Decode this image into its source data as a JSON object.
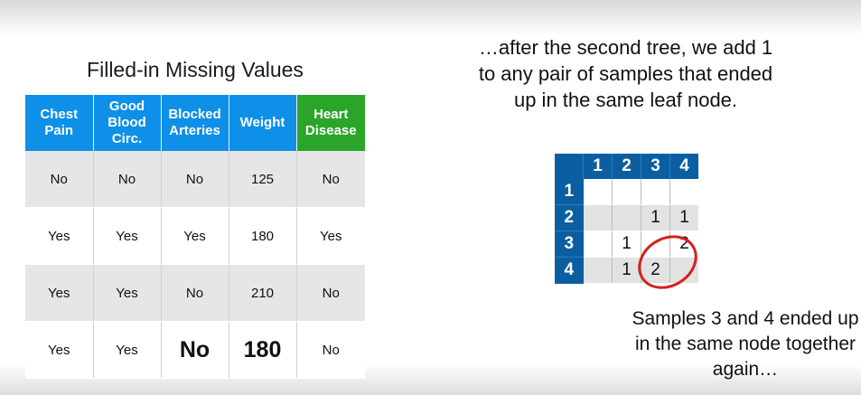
{
  "left_panel": {
    "title": "Filled-in Missing Values",
    "headers": [
      "Chest\nPain",
      "Good\nBlood\nCirc.",
      "Blocked\nArteries",
      "Weight",
      "Heart\nDisease"
    ],
    "rows": [
      [
        "No",
        "No",
        "No",
        "125",
        "No"
      ],
      [
        "Yes",
        "Yes",
        "Yes",
        "180",
        "Yes"
      ],
      [
        "Yes",
        "Yes",
        "No",
        "210",
        "No"
      ],
      [
        "Yes",
        "Yes",
        "No",
        "180",
        "No"
      ]
    ]
  },
  "right_panel": {
    "top_text": "…after the second tree, we add 1 to any pair of samples that ended up in the same leaf node.",
    "matrix_headers": [
      "1",
      "2",
      "3",
      "4"
    ],
    "matrix_rows": [
      {
        "label": "1",
        "cells": [
          "",
          "",
          "",
          ""
        ]
      },
      {
        "label": "2",
        "cells": [
          "",
          "",
          "1",
          "1"
        ]
      },
      {
        "label": "3",
        "cells": [
          "",
          "1",
          "",
          "2"
        ]
      },
      {
        "label": "4",
        "cells": [
          "",
          "1",
          "2",
          ""
        ]
      }
    ],
    "bottom_text": "Samples 3 and 4 ended up in the same node together again…"
  },
  "colors": {
    "header_blue": "#0e8fe8",
    "header_green": "#2aa52a",
    "matrix_blue": "#0b5fa1",
    "circle_red": "#d42020"
  }
}
